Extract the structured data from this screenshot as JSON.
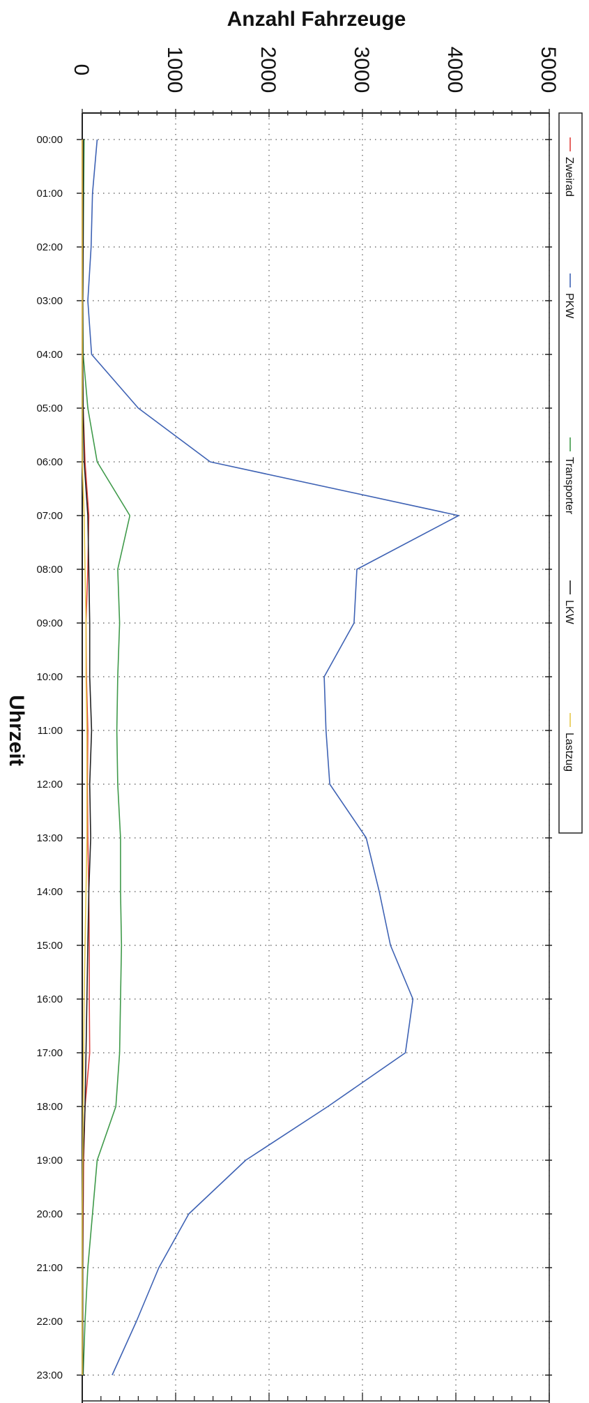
{
  "chart_data": {
    "type": "line",
    "title": "",
    "xlabel": "Uhrzeit",
    "ylabel": "Anzahl Fahrzeuge",
    "ylim": [
      0,
      5000
    ],
    "grid": true,
    "legend_position": "right",
    "yticks": [
      "0",
      "1000",
      "2000",
      "3000",
      "4000",
      "5000"
    ],
    "categories": [
      "00:00",
      "01:00",
      "02:00",
      "03:00",
      "04:00",
      "05:00",
      "06:00",
      "07:00",
      "08:00",
      "09:00",
      "10:00",
      "11:00",
      "12:00",
      "13:00",
      "14:00",
      "15:00",
      "16:00",
      "17:00",
      "18:00",
      "19:00",
      "20:00",
      "21:00",
      "22:00",
      "23:00"
    ],
    "series": [
      {
        "name": "Zweirad",
        "color": "#e0403c",
        "values": [
          0,
          0,
          0,
          0,
          0,
          10,
          30,
          70,
          60,
          40,
          45,
          60,
          55,
          60,
          70,
          75,
          75,
          80,
          30,
          15,
          10,
          5,
          5,
          5
        ]
      },
      {
        "name": "PKW",
        "color": "#3e62b4",
        "values": [
          160,
          110,
          95,
          60,
          100,
          600,
          1370,
          4030,
          2940,
          2910,
          2590,
          2610,
          2650,
          3040,
          3180,
          3300,
          3540,
          3460,
          2630,
          1750,
          1140,
          820,
          580,
          320
        ]
      },
      {
        "name": "Transporter",
        "color": "#3f9a4a",
        "values": [
          20,
          15,
          10,
          5,
          10,
          60,
          160,
          510,
          380,
          400,
          380,
          370,
          380,
          410,
          410,
          420,
          410,
          400,
          360,
          160,
          110,
          60,
          30,
          10
        ]
      },
      {
        "name": "LKW",
        "color": "#222222",
        "values": [
          10,
          10,
          10,
          5,
          5,
          10,
          20,
          60,
          70,
          80,
          80,
          100,
          80,
          90,
          70,
          60,
          50,
          40,
          30,
          10,
          5,
          5,
          5,
          5
        ]
      },
      {
        "name": "Lastzug",
        "color": "#e6c84a",
        "values": [
          0,
          0,
          0,
          0,
          0,
          0,
          0,
          20,
          30,
          40,
          40,
          50,
          50,
          50,
          40,
          30,
          20,
          15,
          10,
          5,
          0,
          0,
          0,
          0
        ]
      }
    ]
  }
}
